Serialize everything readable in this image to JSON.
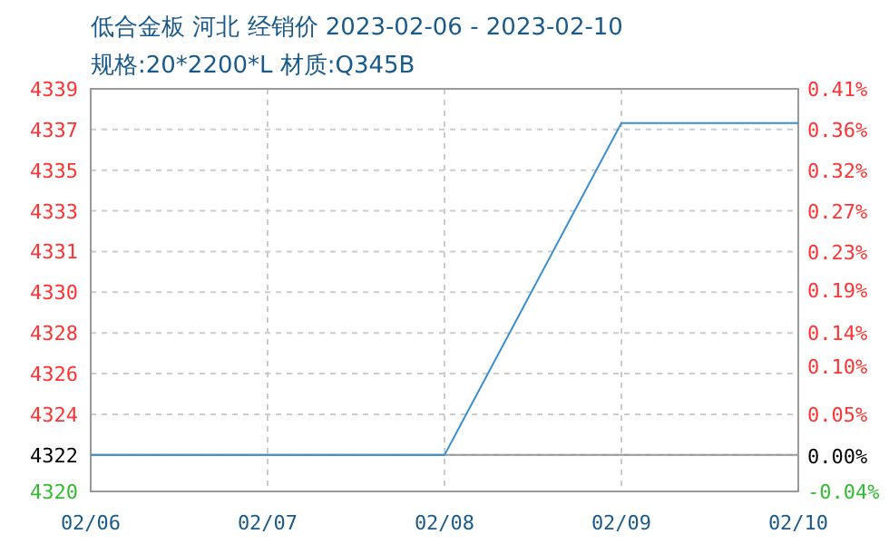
{
  "chart_data": {
    "type": "line",
    "title": "低合金板 河北 经销价 2023-02-06 - 2023-02-10",
    "subtitle": "规格:20*2200*L 材质:Q345B",
    "x": [
      "2023-02-06",
      "2023-02-07",
      "2023-02-08",
      "2023-02-09",
      "2023-02-10"
    ],
    "series": [
      {
        "color": "#3a8fd0",
        "values": [
          4322,
          4322,
          4322,
          4337.5,
          4337.5
        ]
      }
    ],
    "xlim": [
      "2023-02-06",
      "2023-02-10"
    ],
    "xticks": [
      {
        "value": "2023-02-06",
        "label": "02/06"
      },
      {
        "value": "2023-02-07",
        "label": "02/07"
      },
      {
        "value": "2023-02-08",
        "label": "02/08"
      },
      {
        "value": "2023-02-09",
        "label": "02/09"
      },
      {
        "value": "2023-02-10",
        "label": "02/10"
      }
    ],
    "ylim": [
      4320.3,
      4339.1
    ],
    "yticks": [
      {
        "value": 4320.3,
        "label": "4320"
      },
      4322,
      {
        "value": 4323.9,
        "label": "4324"
      },
      {
        "value": 4325.8,
        "label": "4326"
      },
      {
        "value": 4327.7,
        "label": "4328"
      },
      {
        "value": 4329.6,
        "label": "4330"
      },
      {
        "value": 4331.5,
        "label": "4331"
      },
      {
        "value": 4333.4,
        "label": "4333"
      },
      {
        "value": 4335.3,
        "label": "4335"
      },
      {
        "value": 4337.2,
        "label": "4337"
      },
      {
        "value": 4339.1,
        "label": "4339"
      }
    ],
    "y2lim": [
      -0.04,
      0.41
    ],
    "y2ticks": [
      {
        "value": -0.04,
        "label": "-0.04%"
      },
      {
        "value": 0,
        "label": "0.00%"
      },
      {
        "value": 0.046,
        "label": "0.05%"
      },
      {
        "value": 0.1,
        "label": "0.10%"
      },
      {
        "value": 0.137,
        "label": "0.14%"
      },
      {
        "value": 0.185,
        "label": "0.19%"
      },
      {
        "value": 0.228,
        "label": "0.23%"
      },
      {
        "value": 0.273,
        "label": "0.27%"
      },
      {
        "value": 0.319,
        "label": "0.32%"
      },
      {
        "value": 0.364,
        "label": "0.36%"
      },
      {
        "value": 0.41,
        "label": "0.41%"
      }
    ],
    "ref_lines": [
      {
        "axis": "y",
        "value": 4322,
        "color": "#999999"
      }
    ],
    "grid": true,
    "marker": "none",
    "line_style": "solid"
  }
}
